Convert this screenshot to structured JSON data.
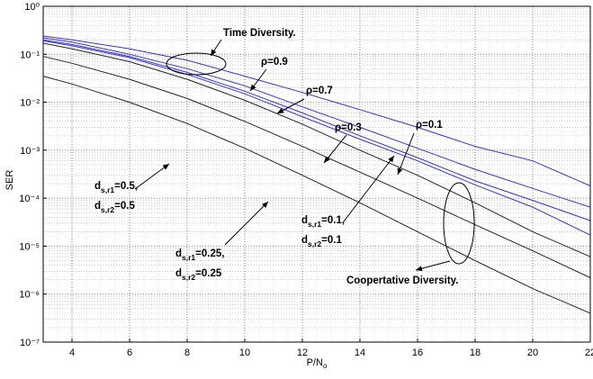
{
  "chart_data": {
    "type": "line",
    "xlabel": [
      "P/N",
      "o"
    ],
    "ylabel": "SER",
    "x": [
      3,
      4,
      6,
      8,
      10,
      12,
      14,
      16,
      18,
      20,
      22
    ],
    "xlim": [
      3,
      22
    ],
    "xticks": [
      4,
      6,
      8,
      10,
      12,
      14,
      16,
      18,
      20,
      22
    ],
    "ylim": [
      1e-07,
      1
    ],
    "log_y": true,
    "grid": true,
    "yticks": [
      {
        "value": 1e-07,
        "label": "10⁻⁷"
      },
      {
        "value": 1e-06,
        "label": "10⁻⁶"
      },
      {
        "value": 1e-05,
        "label": "10⁻⁵"
      },
      {
        "value": 0.0001,
        "label": "10⁻⁴"
      },
      {
        "value": 0.001,
        "label": "10⁻³"
      },
      {
        "value": 0.01,
        "label": "10⁻²"
      },
      {
        "value": 0.1,
        "label": "10⁻¹"
      },
      {
        "value": 1,
        "label": "10⁰"
      }
    ],
    "series": [
      {
        "color": "#3333cc",
        "values": [
          0.24,
          0.2,
          0.13,
          0.075,
          0.035,
          0.016,
          0.007,
          0.003,
          0.0012,
          0.0006,
          0.00018
        ]
      },
      {
        "color": "#3333cc",
        "values": [
          0.22,
          0.18,
          0.1,
          0.05,
          0.022,
          0.008,
          0.003,
          0.0011,
          0.0004,
          0.00016,
          6.5e-05
        ]
      },
      {
        "color": "#3333cc",
        "values": [
          0.2,
          0.16,
          0.09,
          0.042,
          0.017,
          0.006,
          0.002,
          0.0007,
          0.00023,
          9e-05,
          3.4e-05
        ]
      },
      {
        "color": "#3333cc",
        "values": [
          0.19,
          0.15,
          0.085,
          0.038,
          0.015,
          0.005,
          0.0017,
          0.0006,
          0.00019,
          6.5e-05,
          1.7e-05
        ]
      },
      {
        "color": "#222222",
        "values": [
          0.17,
          0.13,
          0.07,
          0.03,
          0.011,
          0.0035,
          0.001,
          0.0003,
          8e-05,
          2e-05,
          6e-06
        ]
      },
      {
        "color": "#222222",
        "values": [
          0.09,
          0.065,
          0.03,
          0.012,
          0.004,
          0.0012,
          0.00035,
          0.0001,
          2.8e-05,
          8e-06,
          2.2e-06
        ]
      },
      {
        "color": "#222222",
        "values": [
          0.035,
          0.024,
          0.01,
          0.0036,
          0.0011,
          0.0003,
          8e-05,
          2e-05,
          5e-06,
          1.3e-06,
          4e-07
        ]
      }
    ],
    "annotations": [
      {
        "lines": [
          [
            "Time Diversity."
          ]
        ]
      },
      {
        "lines": [
          [
            "ρ=0.9"
          ]
        ]
      },
      {
        "lines": [
          [
            "ρ=0.7"
          ]
        ]
      },
      {
        "lines": [
          [
            "ρ=0.3"
          ]
        ]
      },
      {
        "lines": [
          [
            "ρ=0.1"
          ]
        ]
      },
      {
        "lines": [
          [
            "d",
            "s,r1",
            "=0.5,"
          ],
          [
            "d",
            "s,r2",
            "=0.5"
          ]
        ]
      },
      {
        "lines": [
          [
            "d",
            "s,r1",
            "=0.25,"
          ],
          [
            "d",
            "s,r2",
            "=0.25"
          ]
        ]
      },
      {
        "lines": [
          [
            "d",
            "s,r1",
            "=0.1,"
          ],
          [
            "d",
            "s,r2",
            "=0.1"
          ]
        ]
      },
      {
        "lines": [
          [
            "Coopertative Diversity."
          ]
        ]
      }
    ]
  }
}
